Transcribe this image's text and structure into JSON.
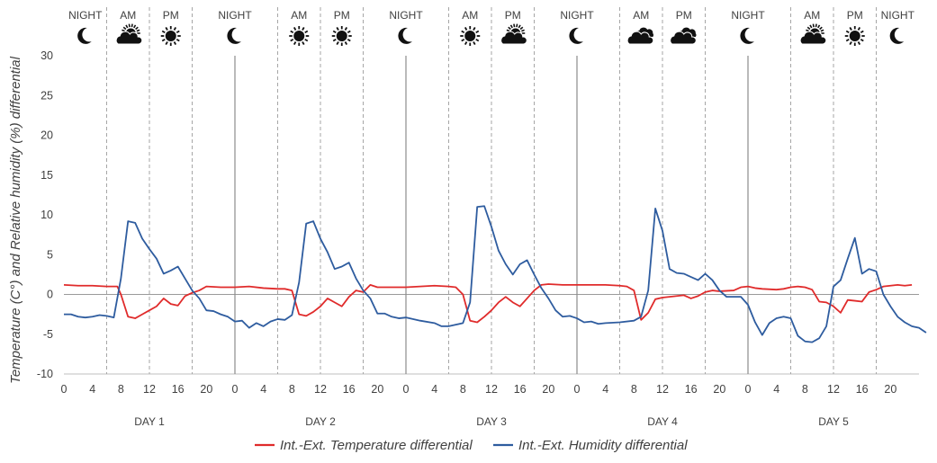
{
  "chart_data": {
    "type": "line",
    "ylabel": "Temperature (C°) and Relative humidity (%) differential",
    "ylim": [
      -10,
      30
    ],
    "yticks": [
      -10,
      -5,
      0,
      5,
      10,
      15,
      20,
      25,
      30
    ],
    "x_hours_per_day": 24,
    "x_days": 5,
    "x_tick_labels": [
      "0",
      "4",
      "8",
      "12",
      "16",
      "20"
    ],
    "day_labels": [
      "DAY 1",
      "DAY 2",
      "DAY 3",
      "DAY 4",
      "DAY 5"
    ],
    "periods": [
      {
        "label": "NIGHT",
        "weather": "moon-icon"
      },
      {
        "label": "AM",
        "weather": "sun-cloud-icon"
      },
      {
        "label": "PM",
        "weather": "sun-icon"
      },
      {
        "label": "NIGHT",
        "weather": "moon-icon"
      },
      {
        "label": "AM",
        "weather": "sun-icon"
      },
      {
        "label": "PM",
        "weather": "sun-icon"
      },
      {
        "label": "NIGHT",
        "weather": "moon-icon"
      },
      {
        "label": "AM",
        "weather": "sun-icon"
      },
      {
        "label": "PM",
        "weather": "sun-cloud-icon"
      },
      {
        "label": "NIGHT",
        "weather": "moon-icon"
      },
      {
        "label": "AM",
        "weather": "cloud-icon"
      },
      {
        "label": "PM",
        "weather": "cloud-icon"
      },
      {
        "label": "NIGHT",
        "weather": "moon-icon"
      },
      {
        "label": "AM",
        "weather": "sun-cloud-icon"
      },
      {
        "label": "PM",
        "weather": "sun-icon"
      },
      {
        "label": "NIGHT",
        "weather": "moon-icon"
      }
    ],
    "series": [
      {
        "name": "Int.-Ext. Temperature differential",
        "color": "#e02b2b",
        "points": [
          [
            0,
            1.2
          ],
          [
            2,
            1.1
          ],
          [
            4,
            1.1
          ],
          [
            6,
            1.0
          ],
          [
            7.5,
            1.0
          ],
          [
            8,
            0
          ],
          [
            9,
            -2.8
          ],
          [
            10,
            -3.0
          ],
          [
            11,
            -2.5
          ],
          [
            12,
            -2.0
          ],
          [
            13,
            -1.5
          ],
          [
            14,
            -0.5
          ],
          [
            15,
            -1.2
          ],
          [
            16,
            -1.4
          ],
          [
            17,
            -0.2
          ],
          [
            18,
            0.2
          ],
          [
            19,
            0.5
          ],
          [
            20,
            1.0
          ],
          [
            22,
            0.9
          ],
          [
            24,
            0.9
          ],
          [
            26,
            1.0
          ],
          [
            28,
            0.8
          ],
          [
            30,
            0.7
          ],
          [
            31,
            0.7
          ],
          [
            32,
            0.5
          ],
          [
            33,
            -2.5
          ],
          [
            34,
            -2.7
          ],
          [
            35,
            -2.2
          ],
          [
            36,
            -1.5
          ],
          [
            37,
            -0.5
          ],
          [
            38,
            -1.0
          ],
          [
            39,
            -1.5
          ],
          [
            40,
            -0.3
          ],
          [
            41,
            0.5
          ],
          [
            42,
            0.3
          ],
          [
            43,
            1.2
          ],
          [
            44,
            0.9
          ],
          [
            46,
            0.9
          ],
          [
            48,
            0.9
          ],
          [
            50,
            1.0
          ],
          [
            52,
            1.1
          ],
          [
            54,
            1.0
          ],
          [
            55,
            0.9
          ],
          [
            56,
            0
          ],
          [
            57,
            -3.3
          ],
          [
            58,
            -3.5
          ],
          [
            59,
            -2.8
          ],
          [
            60,
            -2.0
          ],
          [
            61,
            -1.0
          ],
          [
            62,
            -0.3
          ],
          [
            63,
            -1.0
          ],
          [
            64,
            -1.5
          ],
          [
            65,
            -0.5
          ],
          [
            66,
            0.5
          ],
          [
            67,
            1.2
          ],
          [
            68,
            1.3
          ],
          [
            70,
            1.2
          ],
          [
            72,
            1.2
          ],
          [
            74,
            1.2
          ],
          [
            76,
            1.2
          ],
          [
            78,
            1.1
          ],
          [
            79,
            1.0
          ],
          [
            80,
            0.5
          ],
          [
            81,
            -3.2
          ],
          [
            82,
            -2.3
          ],
          [
            83,
            -0.6
          ],
          [
            84,
            -0.4
          ],
          [
            85,
            -0.3
          ],
          [
            86,
            -0.2
          ],
          [
            87,
            -0.1
          ],
          [
            88,
            -0.5
          ],
          [
            89,
            -0.2
          ],
          [
            90,
            0.3
          ],
          [
            91,
            0.5
          ],
          [
            92,
            0.4
          ],
          [
            94,
            0.5
          ],
          [
            95,
            0.9
          ],
          [
            96,
            1.0
          ],
          [
            97,
            0.8
          ],
          [
            98,
            0.7
          ],
          [
            100,
            0.6
          ],
          [
            101,
            0.7
          ],
          [
            102,
            0.9
          ],
          [
            103,
            1.0
          ],
          [
            104,
            0.9
          ],
          [
            105,
            0.6
          ],
          [
            106,
            -0.9
          ],
          [
            107,
            -1.0
          ],
          [
            108,
            -1.5
          ],
          [
            109,
            -2.3
          ],
          [
            110,
            -0.7
          ],
          [
            111,
            -0.8
          ],
          [
            112,
            -0.9
          ],
          [
            113,
            0.3
          ],
          [
            114,
            0.6
          ],
          [
            115,
            1.0
          ],
          [
            116,
            1.1
          ],
          [
            117,
            1.2
          ],
          [
            118,
            1.1
          ],
          [
            119,
            1.2
          ]
        ]
      },
      {
        "name": "Int.-Ext. Humidity differential",
        "color": "#2e5c9f",
        "points": [
          [
            0,
            -2.5
          ],
          [
            1,
            -2.5
          ],
          [
            2,
            -2.8
          ],
          [
            3,
            -2.9
          ],
          [
            4,
            -2.8
          ],
          [
            5,
            -2.6
          ],
          [
            6,
            -2.7
          ],
          [
            7,
            -2.9
          ],
          [
            8,
            2.0
          ],
          [
            9,
            9.2
          ],
          [
            10,
            9.0
          ],
          [
            11,
            7.0
          ],
          [
            12,
            5.7
          ],
          [
            13,
            4.5
          ],
          [
            14,
            2.6
          ],
          [
            15,
            3.0
          ],
          [
            16,
            3.5
          ],
          [
            17,
            2.0
          ],
          [
            18,
            0.5
          ],
          [
            19,
            -0.5
          ],
          [
            20,
            -2.0
          ],
          [
            21,
            -2.1
          ],
          [
            22,
            -2.5
          ],
          [
            23,
            -2.8
          ],
          [
            24,
            -3.4
          ],
          [
            25,
            -3.3
          ],
          [
            26,
            -4.2
          ],
          [
            27,
            -3.6
          ],
          [
            28,
            -4.0
          ],
          [
            29,
            -3.4
          ],
          [
            30,
            -3.1
          ],
          [
            31,
            -3.2
          ],
          [
            32,
            -2.6
          ],
          [
            33,
            1.5
          ],
          [
            34,
            8.9
          ],
          [
            35,
            9.2
          ],
          [
            36,
            7.0
          ],
          [
            37,
            5.3
          ],
          [
            38,
            3.2
          ],
          [
            39,
            3.5
          ],
          [
            40,
            4.0
          ],
          [
            41,
            2.0
          ],
          [
            42,
            0.5
          ],
          [
            43,
            -0.5
          ],
          [
            44,
            -2.4
          ],
          [
            45,
            -2.4
          ],
          [
            46,
            -2.8
          ],
          [
            47,
            -3.0
          ],
          [
            48,
            -2.9
          ],
          [
            50,
            -3.3
          ],
          [
            52,
            -3.6
          ],
          [
            53,
            -4.0
          ],
          [
            54,
            -4.0
          ],
          [
            55,
            -3.8
          ],
          [
            56,
            -3.6
          ],
          [
            57,
            -1.0
          ],
          [
            58,
            11.0
          ],
          [
            59,
            11.1
          ],
          [
            60,
            8.5
          ],
          [
            61,
            5.5
          ],
          [
            62,
            3.8
          ],
          [
            63,
            2.5
          ],
          [
            64,
            3.8
          ],
          [
            65,
            4.3
          ],
          [
            66,
            2.5
          ],
          [
            67,
            0.8
          ],
          [
            68,
            -0.5
          ],
          [
            69,
            -2.0
          ],
          [
            70,
            -2.8
          ],
          [
            71,
            -2.7
          ],
          [
            72,
            -3.0
          ],
          [
            73,
            -3.5
          ],
          [
            74,
            -3.4
          ],
          [
            75,
            -3.7
          ],
          [
            76,
            -3.6
          ],
          [
            78,
            -3.5
          ],
          [
            80,
            -3.3
          ],
          [
            81,
            -2.8
          ],
          [
            82,
            0.5
          ],
          [
            83,
            10.8
          ],
          [
            84,
            8.0
          ],
          [
            85,
            3.2
          ],
          [
            86,
            2.7
          ],
          [
            87,
            2.6
          ],
          [
            88,
            2.2
          ],
          [
            89,
            1.8
          ],
          [
            90,
            2.6
          ],
          [
            91,
            1.8
          ],
          [
            92,
            0.5
          ],
          [
            93,
            -0.3
          ],
          [
            94,
            -0.3
          ],
          [
            95,
            -0.3
          ],
          [
            96,
            -1.3
          ],
          [
            97,
            -3.5
          ],
          [
            98,
            -5.1
          ],
          [
            99,
            -3.6
          ],
          [
            100,
            -3.0
          ],
          [
            101,
            -2.8
          ],
          [
            102,
            -3.0
          ],
          [
            103,
            -5.2
          ],
          [
            104,
            -5.9
          ],
          [
            105,
            -6.0
          ],
          [
            106,
            -5.5
          ],
          [
            107,
            -4.0
          ],
          [
            108,
            1.0
          ],
          [
            109,
            1.8
          ],
          [
            110,
            4.5
          ],
          [
            111,
            7.1
          ],
          [
            112,
            2.6
          ],
          [
            113,
            3.2
          ],
          [
            114,
            2.9
          ],
          [
            115,
            0
          ],
          [
            116,
            -1.5
          ],
          [
            117,
            -2.8
          ],
          [
            118,
            -3.5
          ],
          [
            119,
            -4.0
          ],
          [
            120,
            -4.2
          ],
          [
            121,
            -4.8
          ]
        ]
      }
    ],
    "legend_position": "bottom-center",
    "grid": false
  }
}
